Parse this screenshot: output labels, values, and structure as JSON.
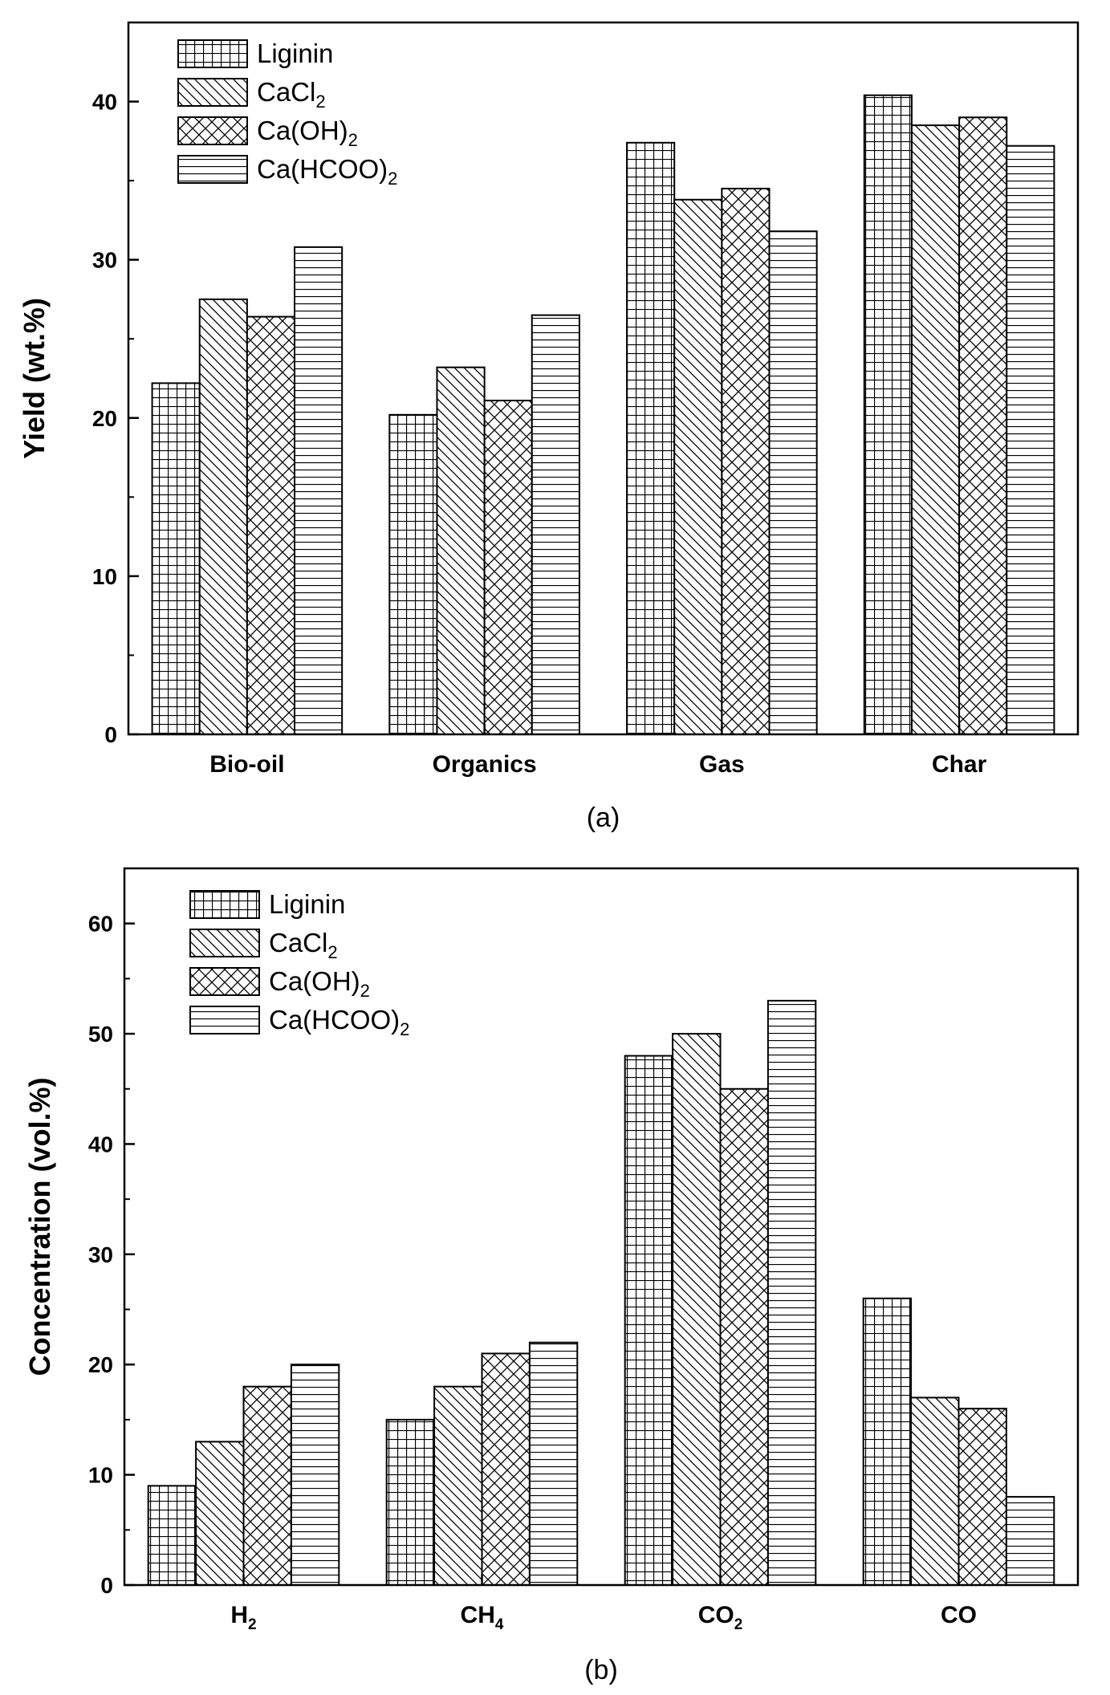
{
  "chart_data": [
    {
      "type": "bar",
      "panel_label": "(a)",
      "ylabel": "Yield (wt.%)",
      "xlabel": "",
      "ylim": [
        0,
        45
      ],
      "yticks": [
        0,
        10,
        20,
        30,
        40
      ],
      "categories": [
        {
          "main": "Bio-oil",
          "sub": ""
        },
        {
          "main": "Organics",
          "sub": ""
        },
        {
          "main": "Gas",
          "sub": ""
        },
        {
          "main": "Char",
          "sub": ""
        }
      ],
      "legend_position": "top-left",
      "series": [
        {
          "name": "Liginin",
          "name_main": "Liginin",
          "name_sub": "",
          "pattern": "grid",
          "values": [
            22.2,
            20.2,
            37.4,
            40.4
          ]
        },
        {
          "name": "CaCl2",
          "name_main": "CaCl",
          "name_sub": "2",
          "pattern": "diag",
          "values": [
            27.5,
            23.2,
            33.8,
            38.5
          ]
        },
        {
          "name": "Ca(OH)2",
          "name_main": "Ca(OH)",
          "name_sub": "2",
          "pattern": "cross",
          "values": [
            26.4,
            21.1,
            34.5,
            39.0
          ]
        },
        {
          "name": "Ca(HCOO)2",
          "name_main": "Ca(HCOO)",
          "name_sub": "2",
          "pattern": "horiz",
          "values": [
            30.8,
            26.5,
            31.8,
            37.2
          ]
        }
      ]
    },
    {
      "type": "bar",
      "panel_label": "(b)",
      "ylabel": "Concentration (vol.%)",
      "xlabel": "",
      "ylim": [
        0,
        65
      ],
      "yticks": [
        0,
        10,
        20,
        30,
        40,
        50,
        60
      ],
      "categories": [
        {
          "main": "H",
          "sub": "2"
        },
        {
          "main": "CH",
          "sub": "4"
        },
        {
          "main": "CO",
          "sub": "2"
        },
        {
          "main": "CO",
          "sub": ""
        }
      ],
      "legend_position": "top-left",
      "series": [
        {
          "name": "Liginin",
          "name_main": "Liginin",
          "name_sub": "",
          "pattern": "grid",
          "values": [
            9,
            15,
            48,
            26
          ]
        },
        {
          "name": "CaCl2",
          "name_main": "CaCl",
          "name_sub": "2",
          "pattern": "diag",
          "values": [
            13,
            18,
            50,
            17
          ]
        },
        {
          "name": "Ca(OH)2",
          "name_main": "Ca(OH)",
          "name_sub": "2",
          "pattern": "cross",
          "values": [
            18,
            21,
            45,
            16
          ]
        },
        {
          "name": "Ca(HCOO)2",
          "name_main": "Ca(HCOO)",
          "name_sub": "2",
          "pattern": "horiz",
          "values": [
            20,
            22,
            53,
            8
          ]
        }
      ]
    }
  ]
}
